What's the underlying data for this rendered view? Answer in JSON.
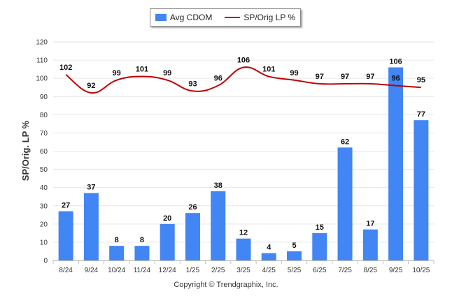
{
  "chart_data": {
    "type": "bar",
    "categories": [
      "8/24",
      "9/24",
      "10/24",
      "11/24",
      "12/24",
      "1/25",
      "2/25",
      "3/25",
      "4/25",
      "5/25",
      "6/25",
      "7/25",
      "8/25",
      "9/25",
      "10/25"
    ],
    "series": [
      {
        "name": "Avg CDOM",
        "kind": "bar",
        "color": "#4285f4",
        "values": [
          27,
          37,
          8,
          8,
          20,
          26,
          38,
          12,
          4,
          5,
          15,
          62,
          17,
          106,
          77
        ]
      },
      {
        "name": "SP/Orig LP %",
        "kind": "line",
        "color": "#c00000",
        "values": [
          102,
          92,
          99,
          101,
          99,
          93,
          96,
          106,
          101,
          99,
          97,
          97,
          97,
          96,
          95
        ]
      }
    ],
    "ylabel": "SP/Orig. LP %",
    "xlabel": "",
    "ylim": [
      0,
      120
    ],
    "yticks": [
      0,
      10,
      20,
      30,
      40,
      50,
      60,
      70,
      80,
      90,
      100,
      110,
      120
    ],
    "legend_position": "top-center",
    "grid": true
  },
  "footer": {
    "copyright": "Copyright © Trendgraphix, Inc."
  }
}
